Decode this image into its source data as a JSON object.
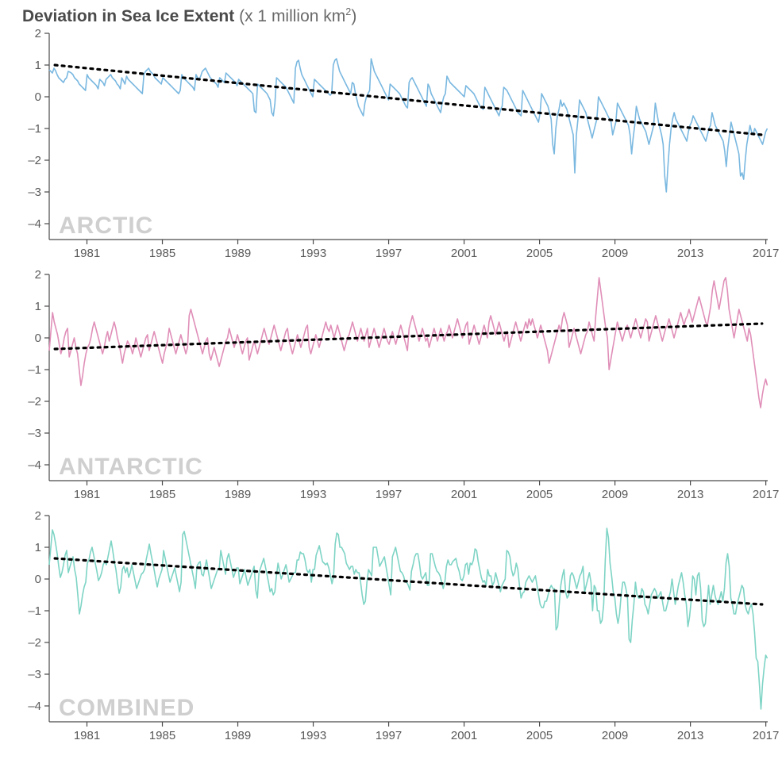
{
  "title_bold": "Deviation in Sea Ice Extent",
  "title_light_prefix": " (x 1 million km",
  "title_light_sup": "2",
  "title_light_suffix": ")",
  "global": {
    "background_color": "#ffffff",
    "axis_color": "#4a4a4a",
    "tick_label_color": "#5a5a5a",
    "tick_font_size": 15,
    "panel_label_color": "#cfcfcf",
    "panel_label_fontsize": 30,
    "trend_color": "#000000",
    "trend_width": 3.2,
    "trend_dash": "3,6",
    "line_width": 1.6,
    "x_start_year": 1979,
    "x_end_year": 2017,
    "x_tick_start": 1981,
    "x_tick_step": 4,
    "x_ticks": [
      1981,
      1985,
      1989,
      1993,
      1997,
      2001,
      2005,
      2009,
      2013,
      2017
    ]
  },
  "panels": [
    {
      "id": "arctic",
      "label": "ARCTIC",
      "line_color": "#7ab8e0",
      "y_min": -4.5,
      "y_max": 2,
      "y_ticks": [
        2,
        1,
        0,
        -1,
        -2,
        -3,
        -4
      ],
      "trend_y_start": 1.0,
      "trend_y_end": -1.2,
      "series": [
        0.85,
        0.8,
        0.75,
        0.9,
        0.82,
        0.7,
        0.6,
        0.55,
        0.5,
        0.45,
        0.55,
        0.6,
        0.8,
        0.78,
        0.75,
        0.7,
        0.6,
        0.55,
        0.5,
        0.4,
        0.35,
        0.3,
        0.25,
        0.2,
        0.7,
        0.6,
        0.55,
        0.5,
        0.45,
        0.4,
        0.35,
        0.25,
        0.55,
        0.5,
        0.45,
        0.35,
        0.55,
        0.6,
        0.65,
        0.7,
        0.6,
        0.55,
        0.5,
        0.4,
        0.35,
        0.25,
        0.6,
        0.5,
        0.4,
        0.65,
        0.55,
        0.5,
        0.45,
        0.4,
        0.35,
        0.3,
        0.25,
        0.2,
        0.15,
        0.1,
        0.7,
        0.8,
        0.85,
        0.9,
        0.8,
        0.75,
        0.7,
        0.6,
        0.55,
        0.5,
        0.45,
        0.4,
        0.6,
        0.55,
        0.5,
        0.45,
        0.4,
        0.35,
        0.3,
        0.25,
        0.2,
        0.15,
        0.1,
        0.2,
        0.7,
        0.6,
        0.55,
        0.5,
        0.45,
        0.4,
        0.35,
        0.3,
        0.2,
        0.7,
        0.6,
        0.55,
        0.65,
        0.8,
        0.85,
        0.9,
        0.8,
        0.7,
        0.6,
        0.55,
        0.5,
        0.45,
        0.4,
        0.3,
        0.6,
        0.55,
        0.5,
        0.45,
        0.75,
        0.7,
        0.65,
        0.6,
        0.55,
        0.5,
        0.45,
        0.35,
        0.55,
        0.5,
        0.45,
        0.4,
        0.35,
        0.3,
        0.25,
        0.2,
        0.15,
        0.1,
        -0.45,
        -0.5,
        0.4,
        0.35,
        0.3,
        0.25,
        0.2,
        0.15,
        0.1,
        0,
        -0.1,
        -0.5,
        -0.6,
        -0.2,
        0.6,
        0.55,
        0.5,
        0.45,
        0.4,
        0.35,
        0.3,
        0.2,
        0.1,
        0,
        -0.1,
        -0.2,
        0.9,
        1.1,
        1.15,
        0.9,
        0.7,
        0.6,
        0.5,
        0.4,
        0.3,
        0.2,
        0.1,
        0,
        0.55,
        0.5,
        0.45,
        0.4,
        0.35,
        0.3,
        0.25,
        0.2,
        0.15,
        0.1,
        0.05,
        0.1,
        1.0,
        1.15,
        1.2,
        1.0,
        0.8,
        0.7,
        0.6,
        0.5,
        0.4,
        0.3,
        0.2,
        0.1,
        0.45,
        0.4,
        0.1,
        -0.1,
        -0.3,
        -0.4,
        -0.5,
        -0.6,
        -0.2,
        0,
        0.1,
        0.2,
        1.2,
        1.0,
        0.8,
        0.7,
        0.6,
        0.5,
        0.4,
        0.3,
        0.2,
        0.1,
        0,
        -0.1,
        0.4,
        0.35,
        0.3,
        0.25,
        0.2,
        0.15,
        0.1,
        0,
        -0.1,
        -0.2,
        -0.3,
        -0.35,
        0.45,
        0.55,
        0.6,
        0.5,
        0.4,
        0.3,
        0.2,
        0.1,
        0,
        -0.1,
        -0.2,
        -0.3,
        0.4,
        0.3,
        0.1,
        0,
        -0.1,
        -0.2,
        -0.3,
        -0.4,
        -0.5,
        -0.2,
        0,
        0.1,
        0.65,
        0.55,
        0.45,
        0.4,
        0.35,
        0.3,
        0.25,
        0.2,
        0.15,
        0.1,
        0.05,
        0,
        0.35,
        0.3,
        0.25,
        0.2,
        0.15,
        0.1,
        0,
        -0.1,
        -0.2,
        -0.3,
        -0.35,
        -0.4,
        0.3,
        0.2,
        0.1,
        0,
        -0.1,
        -0.2,
        -0.3,
        -0.4,
        -0.5,
        -0.6,
        -0.4,
        -0.3,
        0.3,
        0.25,
        0.2,
        0.1,
        0,
        -0.1,
        -0.2,
        -0.3,
        -0.4,
        -0.5,
        -0.55,
        -0.6,
        0.2,
        0.1,
        0,
        -0.1,
        -0.2,
        -0.3,
        -0.4,
        -0.5,
        -0.6,
        -0.7,
        -0.8,
        -0.5,
        0.1,
        0,
        -0.1,
        -0.2,
        -0.3,
        -0.5,
        -0.7,
        -1.5,
        -1.8,
        -1.0,
        -0.6,
        -0.4,
        -0.1,
        -0.3,
        -0.2,
        -0.3,
        -0.4,
        -0.6,
        -0.8,
        -1.0,
        -1.2,
        -2.4,
        -1.2,
        -0.7,
        -0.1,
        -0.2,
        -0.3,
        -0.4,
        -0.5,
        -0.7,
        -0.9,
        -1.1,
        -1.3,
        -1.1,
        -0.9,
        -0.7,
        0,
        -0.1,
        -0.2,
        -0.3,
        -0.4,
        -0.5,
        -0.6,
        -0.7,
        -0.8,
        -1.2,
        -1.0,
        -0.8,
        -0.2,
        -0.3,
        -0.4,
        -0.5,
        -0.6,
        -0.7,
        -0.8,
        -0.9,
        -1.2,
        -1.8,
        -1.3,
        -0.9,
        -0.3,
        -0.5,
        -0.7,
        -0.8,
        -0.9,
        -1.0,
        -1.1,
        -1.3,
        -1.5,
        -1.3,
        -1.1,
        -0.9,
        -0.2,
        -0.5,
        -0.8,
        -1.0,
        -1.2,
        -1.5,
        -2.5,
        -3.0,
        -2.2,
        -1.5,
        -1.0,
        -0.7,
        -0.5,
        -0.7,
        -0.8,
        -0.9,
        -1.0,
        -1.1,
        -1.2,
        -1.3,
        -1.4,
        -1.1,
        -0.9,
        -0.8,
        -0.6,
        -0.7,
        -0.8,
        -0.9,
        -1.0,
        -1.1,
        -1.2,
        -1.3,
        -1.4,
        -1.2,
        -1.0,
        -0.9,
        -0.5,
        -0.7,
        -0.9,
        -1.0,
        -1.1,
        -1.2,
        -1.3,
        -1.4,
        -1.7,
        -2.2,
        -1.6,
        -1.2,
        -0.8,
        -1.0,
        -1.2,
        -1.4,
        -1.6,
        -1.8,
        -2.5,
        -2.4,
        -2.6,
        -2.0,
        -1.5,
        -1.2,
        -0.9,
        -1.1,
        -1.2,
        -1.0,
        -1.1,
        -1.2,
        -1.3,
        -1.4,
        -1.5,
        -1.3,
        -1.1,
        -1.0
      ]
    },
    {
      "id": "antarctic",
      "label": "ANTARCTIC",
      "line_color": "#e08fb8",
      "y_min": -4.5,
      "y_max": 2,
      "y_ticks": [
        2,
        1,
        0,
        -1,
        -2,
        -3,
        -4
      ],
      "trend_y_start": -0.35,
      "trend_y_end": 0.45,
      "series": [
        -0.4,
        0.2,
        0.8,
        0.5,
        0.3,
        0.1,
        -0.2,
        -0.5,
        -0.3,
        0,
        0.2,
        0.3,
        -0.6,
        -0.4,
        -0.2,
        0,
        -0.3,
        -0.5,
        -1.0,
        -1.5,
        -1.2,
        -0.8,
        -0.5,
        -0.3,
        -0.2,
        0,
        0.3,
        0.5,
        0.3,
        0.1,
        -0.1,
        -0.3,
        -0.5,
        -0.3,
        0,
        0.2,
        -0.1,
        0.1,
        0.3,
        0.5,
        0.3,
        0,
        -0.2,
        -0.5,
        -0.8,
        -0.5,
        -0.3,
        -0.1,
        -0.2,
        -0.3,
        -0.5,
        -0.3,
        0,
        -0.2,
        -0.4,
        -0.6,
        -0.4,
        -0.2,
        0,
        0.1,
        -0.4,
        -0.2,
        0.0,
        0.2,
        0,
        -0.2,
        -0.4,
        -0.6,
        -0.8,
        -0.5,
        -0.3,
        -0.1,
        0.3,
        0.1,
        -0.1,
        -0.3,
        -0.5,
        -0.3,
        -0.1,
        0.1,
        -0.1,
        -0.3,
        -0.5,
        -0.3,
        0.7,
        0.9,
        0.7,
        0.5,
        0.3,
        0.1,
        -0.1,
        -0.3,
        -0.5,
        -0.3,
        -0.1,
        0,
        -0.5,
        -0.7,
        -0.5,
        -0.3,
        -0.5,
        -0.7,
        -0.9,
        -0.7,
        -0.5,
        -0.3,
        -0.1,
        0,
        0.3,
        0.1,
        -0.1,
        -0.3,
        -0.1,
        0.1,
        -0.1,
        -0.3,
        -0.5,
        -0.3,
        -0.1,
        0,
        -0.7,
        -0.5,
        -0.3,
        -0.1,
        -0.3,
        -0.5,
        -0.3,
        -0.1,
        0.1,
        0.3,
        0.1,
        -0.1,
        -0.2,
        0,
        0.2,
        0.4,
        0.2,
        0,
        -0.2,
        -0.4,
        -0.2,
        0,
        0.2,
        0.3,
        -0.1,
        -0.3,
        -0.5,
        -0.3,
        -0.1,
        0.1,
        -0.1,
        -0.3,
        -0.1,
        0.1,
        0.3,
        0.4,
        -0.3,
        -0.5,
        -0.3,
        -0.1,
        0.1,
        -0.1,
        -0.3,
        -0.1,
        0.1,
        0.3,
        0.5,
        0.3,
        0.2,
        0.4,
        0.2,
        0,
        0.2,
        0.4,
        0.2,
        0,
        -0.2,
        -0.4,
        -0.2,
        0,
        0.1,
        0.3,
        0.5,
        0.3,
        0.1,
        -0.1,
        0.1,
        0.3,
        0.1,
        -0.1,
        0.1,
        0.3,
        -0.3,
        -0.1,
        0.1,
        0.3,
        0.1,
        -0.1,
        -0.3,
        -0.1,
        0.1,
        0.3,
        0.1,
        -0.1,
        -0.2,
        0,
        0.2,
        0,
        -0.2,
        0,
        0.2,
        0.4,
        0.2,
        0,
        -0.2,
        -0.4,
        0.3,
        0.5,
        0.7,
        0.5,
        0.3,
        0.1,
        -0.1,
        0.1,
        0.3,
        0.1,
        -0.1,
        0,
        -0.3,
        -0.1,
        0.1,
        0.3,
        0.1,
        -0.1,
        0.1,
        0.3,
        0.1,
        -0.1,
        0.1,
        0.2,
        0.4,
        0.2,
        0,
        0.2,
        0.4,
        0.6,
        0.4,
        0.2,
        0,
        0.2,
        0.4,
        0.5,
        -0.2,
        0,
        0.2,
        0.4,
        0.2,
        0,
        -0.2,
        0,
        0.2,
        0.4,
        0.2,
        0,
        0.5,
        0.7,
        0.5,
        0.3,
        0.1,
        0.3,
        0.5,
        0.3,
        0.1,
        -0.1,
        0.1,
        0.2,
        -0.3,
        -0.1,
        0.1,
        0.3,
        0.5,
        0.3,
        0.1,
        -0.1,
        0.1,
        0.3,
        0.5,
        0.3,
        0.6,
        0.4,
        0.6,
        0.4,
        0.2,
        0,
        0.2,
        0.4,
        0.2,
        0,
        -0.2,
        -0.4,
        -0.8,
        -0.6,
        -0.4,
        -0.2,
        0,
        0.2,
        0.4,
        0.2,
        0.6,
        0.8,
        0.6,
        0.4,
        -0.3,
        -0.1,
        0.1,
        0.3,
        0.1,
        -0.1,
        -0.3,
        -0.5,
        -0.3,
        -0.1,
        0.1,
        0.2,
        0.5,
        0.3,
        0.1,
        -0.1,
        0.7,
        1.3,
        1.9,
        1.5,
        1.1,
        0.7,
        0.3,
        0,
        -1.0,
        -0.7,
        -0.4,
        -0.1,
        0.2,
        0.5,
        0.3,
        0.1,
        -0.1,
        0.1,
        0.3,
        0.4,
        0.2,
        0,
        0.2,
        0.4,
        0.6,
        0.4,
        0.2,
        0,
        0.2,
        0.4,
        0.6,
        0.5,
        -0.1,
        0.1,
        0.3,
        0.5,
        0.7,
        0.5,
        0.3,
        0.1,
        -0.1,
        0.1,
        0.3,
        0.4,
        0.6,
        0.4,
        0.2,
        0,
        0.2,
        0.4,
        0.6,
        0.8,
        0.6,
        0.4,
        0.6,
        0.7,
        0.9,
        0.7,
        0.5,
        0.7,
        0.9,
        1.1,
        1.3,
        1.1,
        0.9,
        0.7,
        0.5,
        0.4,
        0.7,
        1.0,
        1.5,
        1.8,
        1.5,
        1.2,
        0.9,
        1.2,
        1.5,
        1.8,
        1.9,
        1.5,
        0.9,
        0.6,
        0.3,
        0,
        0.3,
        0.6,
        0.9,
        0.7,
        0.5,
        0.3,
        0.1,
        -0.1,
        0.3,
        0.1,
        -0.3,
        -0.7,
        -1.1,
        -1.5,
        -1.9,
        -2.2,
        -1.8,
        -1.5,
        -1.3,
        -1.5
      ]
    },
    {
      "id": "combined",
      "label": "COMBINED",
      "line_color": "#7ed4c5",
      "y_min": -4.5,
      "y_max": 2,
      "y_ticks": [
        2,
        1,
        0,
        -1,
        -2,
        -3,
        -4
      ],
      "trend_y_start": 0.65,
      "trend_y_end": -0.8,
      "series": [
        0.45,
        1.0,
        1.55,
        1.4,
        1.12,
        0.8,
        0.4,
        0.05,
        0.2,
        0.45,
        0.75,
        0.9,
        0.2,
        0.38,
        0.55,
        0.7,
        0.3,
        0.05,
        -0.5,
        -1.1,
        -0.85,
        -0.5,
        -0.25,
        -0.1,
        0.5,
        0.6,
        0.85,
        1.0,
        0.75,
        0.5,
        0.25,
        -0.05,
        0.05,
        0.2,
        0.45,
        0.55,
        0.45,
        0.7,
        0.95,
        1.2,
        0.9,
        0.55,
        0.3,
        -0.1,
        -0.45,
        -0.25,
        0.3,
        0.4,
        0.2,
        0.35,
        0.05,
        0.2,
        0.45,
        0.2,
        -0.05,
        -0.3,
        -0.15,
        0.0,
        0.15,
        0.2,
        0.3,
        0.6,
        0.85,
        1.1,
        0.8,
        0.55,
        0.3,
        0.0,
        -0.25,
        0.0,
        0.15,
        0.3,
        0.9,
        0.65,
        0.4,
        0.15,
        -0.1,
        0.05,
        0.2,
        0.35,
        0.1,
        -0.15,
        -0.4,
        -0.1,
        1.4,
        1.5,
        1.25,
        1.0,
        0.75,
        0.5,
        0.25,
        0.0,
        -0.3,
        0.4,
        0.5,
        0.55,
        0.15,
        0.1,
        0.35,
        0.6,
        0.3,
        0.0,
        -0.3,
        -0.15,
        0.0,
        0.15,
        0.3,
        0.3,
        0.9,
        0.65,
        0.4,
        0.15,
        0.65,
        0.8,
        0.55,
        0.3,
        0.05,
        0.2,
        0.35,
        0.35,
        -0.15,
        0.0,
        0.15,
        0.3,
        0.05,
        -0.2,
        -0.05,
        0.1,
        0.25,
        0.4,
        -0.35,
        -0.6,
        0.2,
        0.35,
        0.5,
        0.65,
        0.4,
        0.15,
        -0.1,
        -0.4,
        -0.3,
        -0.5,
        -0.4,
        0.1,
        0.5,
        0.25,
        0.0,
        0.15,
        0.3,
        0.45,
        0.2,
        -0.1,
        0.0,
        0.1,
        0.2,
        0.2,
        0.6,
        0.6,
        0.85,
        0.8,
        0.8,
        0.6,
        0.3,
        0.2,
        0.3,
        -0.1,
        0.3,
        0.3,
        0.75,
        0.9,
        1.05,
        0.8,
        0.55,
        0.5,
        0.45,
        0.5,
        0.35,
        0.1,
        -0.15,
        0.1,
        1.1,
        1.45,
        1.4,
        1.0,
        1.0,
        0.9,
        0.8,
        0.5,
        0.4,
        0.3,
        0.4,
        0.4,
        0.15,
        0.3,
        0.2,
        0.2,
        -0.1,
        -0.5,
        -0.8,
        -0.7,
        -0.1,
        0.3,
        0.2,
        0.1,
        1.0,
        1.0,
        1.0,
        0.7,
        0.4,
        0.5,
        0.6,
        0.7,
        0.4,
        0.1,
        -0.2,
        -0.5,
        0.7,
        0.85,
        1.0,
        0.75,
        0.5,
        0.25,
        0.2,
        0.1,
        -0.1,
        -0.1,
        -0.2,
        -0.35,
        0.25,
        0.45,
        0.7,
        0.8,
        0.8,
        0.5,
        0.1,
        0.0,
        0.1,
        0.2,
        -0.2,
        -0.2,
        0.8,
        0.8,
        0.6,
        0.4,
        0.25,
        0.2,
        0.1,
        -0.1,
        -0.3,
        -0.1,
        0.4,
        0.6,
        0.45,
        0.45,
        0.55,
        0.6,
        0.65,
        0.4,
        0.25,
        0.0,
        -0.05,
        0.1,
        0.45,
        0.5,
        0.15,
        0.5,
        0.45,
        0.6,
        0.95,
        0.9,
        0.55,
        0.3,
        0.05,
        -0.1,
        -0.05,
        -0.2,
        0.3,
        0.1,
        0.1,
        -0.2,
        -0.1,
        0.2,
        0.0,
        -0.2,
        -0.4,
        -0.2,
        -0.1,
        0.0,
        0.9,
        0.85,
        0.7,
        0.3,
        0.1,
        0.2,
        0.5,
        0.3,
        -0.2,
        -0.6,
        -0.45,
        -0.4,
        -0.1,
        0.0,
        0.1,
        0.0,
        -0.1,
        0.0,
        0.1,
        -0.2,
        -0.5,
        -0.8,
        -0.9,
        -0.9,
        -0.7,
        -0.7,
        -0.5,
        -0.3,
        -0.2,
        -0.3,
        -0.3,
        -1.6,
        -1.5,
        -0.8,
        -0.2,
        0.1,
        0.3,
        -0.4,
        -0.6,
        -0.5,
        0.1,
        0.2,
        0.1,
        -0.1,
        -0.3,
        -0.1,
        0.1,
        0.2,
        0.4,
        -0.4,
        -0.2,
        0.0,
        0.2,
        -0.1,
        -1.0,
        -0.2,
        -0.3,
        -1.0,
        -1.0,
        -1.4,
        -1.3,
        -0.8,
        0.6,
        1.6,
        1.3,
        0.5,
        0.1,
        -0.4,
        -0.6,
        -1.1,
        -1.4,
        -1.1,
        -0.5,
        -0.1,
        -0.1,
        -0.3,
        -0.6,
        -1.9,
        -2.0,
        -1.3,
        -0.8,
        -0.1,
        -0.5,
        -0.6,
        -0.6,
        -0.3,
        -0.4,
        -0.8,
        -0.9,
        -1.1,
        -0.8,
        -0.5,
        -0.4,
        -0.3,
        -0.4,
        -0.6,
        -0.5,
        -0.4,
        -0.7,
        -1.0,
        -1.0,
        -0.8,
        -0.6,
        -0.4,
        0.0,
        -0.4,
        -0.8,
        -0.5,
        -0.2,
        0.0,
        0.2,
        -0.1,
        -0.5,
        -0.8,
        -1.5,
        -1.2,
        -0.7,
        0.1,
        0.0,
        -0.5,
        0.1,
        0.2,
        -0.3,
        -1.3,
        -1.5,
        -1.4,
        -0.8,
        -0.2,
        -0.8,
        -0.5,
        -0.2,
        -0.5,
        -0.7,
        -0.8,
        -0.6,
        -0.4,
        -0.7,
        -0.3,
        0.5,
        0.8,
        0.4,
        -0.6,
        -0.8,
        -1.1,
        -1.1,
        -0.8,
        -0.6,
        -0.4,
        -0.2,
        -0.3,
        -0.8,
        -1.0,
        -1.1,
        -0.9,
        -0.8,
        -1.1,
        -1.7,
        -2.5,
        -2.6,
        -3.3,
        -4.1,
        -3.3,
        -2.8,
        -2.4,
        -2.5
      ]
    }
  ]
}
